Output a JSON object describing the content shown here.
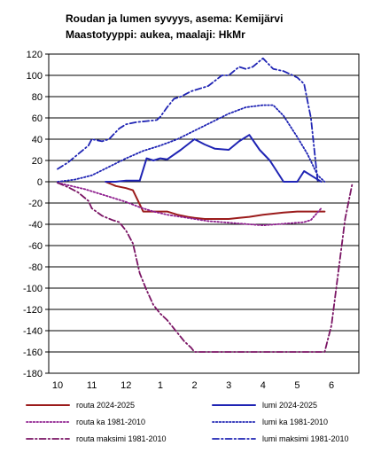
{
  "chart_data": {
    "type": "line",
    "title": "Roudan ja lumen syvyys, asema: Kemijärvi",
    "subtitle": "Maastotyyppi: aukea, maalaji: HkMr",
    "xlabel": "",
    "ylabel": "",
    "x_tick_labels": [
      "10",
      "11",
      "12",
      "1",
      "2",
      "3",
      "4",
      "5",
      "6"
    ],
    "x_tick_positions": [
      0,
      1,
      2,
      3,
      4,
      5,
      6,
      7,
      8
    ],
    "xlim": [
      0,
      8.8
    ],
    "ylim": [
      -180,
      120
    ],
    "y_ticks": [
      120,
      100,
      80,
      60,
      40,
      20,
      0,
      -20,
      -40,
      -60,
      -80,
      -100,
      -120,
      -140,
      -160,
      -180
    ],
    "grid": "horizontal",
    "legend_position": "bottom",
    "series": [
      {
        "name": "routa 2024-2025",
        "color": "#9b1b1b",
        "style": "solid",
        "x": [
          1.4,
          1.7,
          2.0,
          2.2,
          2.5,
          2.8,
          3.0,
          3.2,
          3.5,
          3.8,
          4.0,
          4.3,
          4.6,
          4.9,
          5.0,
          5.3,
          5.6,
          6.0,
          6.3,
          6.6,
          7.0,
          7.4,
          7.8
        ],
        "y": [
          0,
          -4,
          -6,
          -8,
          -28,
          -28,
          -28,
          -28,
          -31,
          -33,
          -34,
          -35,
          -35,
          -35,
          -35,
          -34,
          -33,
          -31,
          -30,
          -29,
          -28,
          -28,
          -28
        ]
      },
      {
        "name": "lumi 2024-2025",
        "color": "#1f24b4",
        "style": "solid",
        "x": [
          1.4,
          1.7,
          2.0,
          2.2,
          2.4,
          2.6,
          2.8,
          3.0,
          3.2,
          3.6,
          4.0,
          4.3,
          4.6,
          5.0,
          5.3,
          5.6,
          5.9,
          6.2,
          6.4,
          6.6,
          7.0,
          7.2,
          7.5,
          7.7
        ],
        "y": [
          0,
          0,
          1,
          1,
          1,
          22,
          20,
          22,
          21,
          30,
          40,
          35,
          31,
          30,
          38,
          44,
          30,
          20,
          10,
          0,
          0,
          10,
          4,
          0
        ]
      },
      {
        "name": "routa ka 1981-2010",
        "color": "#8e1d8e",
        "style": "dotted",
        "x": [
          0,
          0.4,
          0.8,
          1.2,
          1.6,
          2.0,
          2.4,
          2.8,
          3.2,
          3.6,
          4.0,
          4.4,
          4.8,
          5.2,
          5.6,
          6.0,
          6.4,
          6.8,
          7.2,
          7.4,
          7.7
        ],
        "y": [
          -1,
          -4,
          -7,
          -11,
          -15,
          -19,
          -24,
          -28,
          -31,
          -33,
          -35,
          -37,
          -38,
          -39,
          -40,
          -41,
          -40,
          -39,
          -38,
          -36,
          -25
        ]
      },
      {
        "name": "lumi ka 1981-2010",
        "color": "#1f24b4",
        "style": "dotted",
        "x": [
          0,
          0.5,
          1.0,
          1.5,
          2.0,
          2.5,
          3.0,
          3.5,
          4.0,
          4.5,
          5.0,
          5.5,
          6.0,
          6.3,
          6.6,
          7.0,
          7.3,
          7.6,
          7.8
        ],
        "y": [
          0,
          2,
          6,
          14,
          22,
          29,
          34,
          40,
          48,
          56,
          64,
          70,
          72,
          72,
          62,
          42,
          26,
          6,
          0
        ]
      },
      {
        "name": "routa maksimi 1981-2010",
        "color": "#7a1464",
        "style": "dash-dot",
        "x": [
          0,
          0.3,
          0.6,
          0.9,
          1.0,
          1.3,
          1.6,
          1.8,
          2.0,
          2.2,
          2.4,
          2.6,
          2.8,
          3.0,
          3.2,
          3.5,
          3.7,
          3.9,
          4.0,
          4.5,
          5.0,
          6.0,
          7.0,
          7.6,
          7.7,
          7.8,
          8.0,
          8.2,
          8.4,
          8.6
        ],
        "y": [
          -1,
          -5,
          -10,
          -18,
          -25,
          -32,
          -36,
          -38,
          -46,
          -58,
          -86,
          -102,
          -116,
          -124,
          -130,
          -142,
          -150,
          -156,
          -160,
          -160,
          -160,
          -160,
          -160,
          -160,
          -160,
          -160,
          -135,
          -85,
          -35,
          -3
        ]
      },
      {
        "name": "lumi maksimi 1981-2010",
        "color": "#1f24b4",
        "style": "dash-dot",
        "x": [
          0,
          0.3,
          0.6,
          0.9,
          1.0,
          1.3,
          1.5,
          1.8,
          2.0,
          2.3,
          2.6,
          2.9,
          3.0,
          3.2,
          3.4,
          3.6,
          3.9,
          4.2,
          4.4,
          4.8,
          5.0,
          5.3,
          5.5,
          5.7,
          6.0,
          6.3,
          6.6,
          7.0,
          7.1,
          7.2,
          7.4,
          7.6
        ],
        "y": [
          12,
          18,
          26,
          34,
          40,
          38,
          40,
          50,
          54,
          56,
          57,
          58,
          61,
          70,
          78,
          80,
          85,
          88,
          90,
          100,
          100,
          108,
          106,
          108,
          116,
          106,
          104,
          98,
          95,
          92,
          60,
          0
        ]
      }
    ]
  }
}
